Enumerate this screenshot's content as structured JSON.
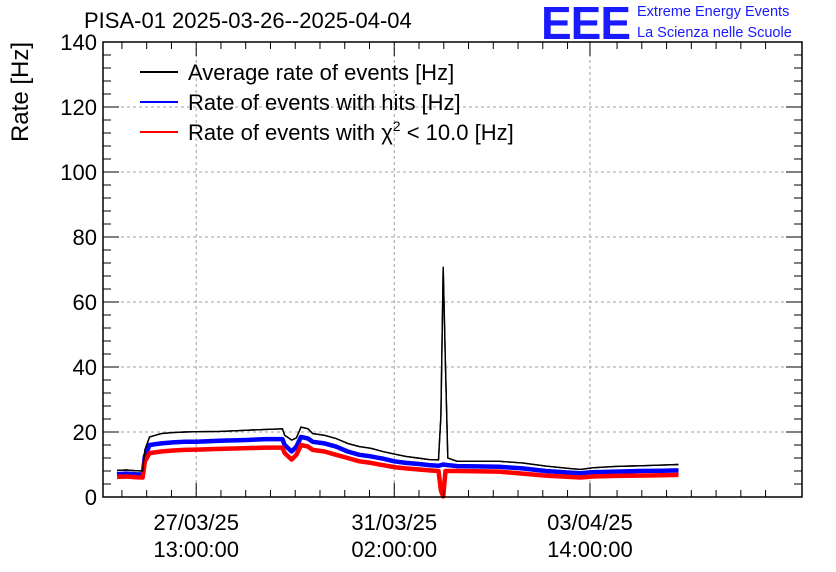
{
  "header": {
    "title": "PISA-01 2025-03-26--2025-04-04",
    "logo_text": "EEE",
    "logo_line1": "Extreme Energy Events",
    "logo_line2": "La Scienza nelle Scuole"
  },
  "chart_data": {
    "type": "line",
    "title": "PISA-01 2025-03-26--2025-04-04",
    "ylabel": "Rate [Hz]",
    "xlabel": "",
    "ylim": [
      0,
      140
    ],
    "xlim": [
      -40,
      260
    ],
    "x_unit": "hours relative to 27/03/25 13:00:00",
    "grid": true,
    "legend_position": "top-left",
    "yticks": [
      0,
      20,
      40,
      60,
      80,
      100,
      120,
      140
    ],
    "xticks": [
      {
        "x": 0,
        "line1": "27/03/25",
        "line2": "13:00:00"
      },
      {
        "x": 85,
        "line1": "31/03/25",
        "line2": "02:00:00"
      },
      {
        "x": 169,
        "line1": "03/04/25",
        "line2": "14:00:00"
      }
    ],
    "series": [
      {
        "name": "Average rate of events [Hz]",
        "color": "#000000",
        "points": [
          [
            -34,
            8.2
          ],
          [
            -30,
            8.3
          ],
          [
            -26,
            8.1
          ],
          [
            -23,
            8.0
          ],
          [
            -22,
            14.5
          ],
          [
            -20,
            18.5
          ],
          [
            -15,
            19.5
          ],
          [
            -10,
            19.8
          ],
          [
            -5,
            20.0
          ],
          [
            0,
            20.1
          ],
          [
            10,
            20.2
          ],
          [
            20,
            20.5
          ],
          [
            30,
            20.8
          ],
          [
            37,
            21.0
          ],
          [
            38,
            19.0
          ],
          [
            41,
            17.5
          ],
          [
            43,
            18.2
          ],
          [
            45,
            21.5
          ],
          [
            48,
            21.0
          ],
          [
            50,
            19.5
          ],
          [
            55,
            19.0
          ],
          [
            60,
            18.0
          ],
          [
            65,
            16.5
          ],
          [
            70,
            15.5
          ],
          [
            75,
            15.0
          ],
          [
            80,
            14.0
          ],
          [
            85,
            13.2
          ],
          [
            90,
            12.5
          ],
          [
            95,
            12.0
          ],
          [
            100,
            11.5
          ],
          [
            104,
            11.4
          ],
          [
            105,
            25.0
          ],
          [
            106,
            70.7
          ],
          [
            107,
            40.0
          ],
          [
            108,
            12.0
          ],
          [
            112,
            11.0
          ],
          [
            120,
            11.0
          ],
          [
            130,
            11.0
          ],
          [
            140,
            10.5
          ],
          [
            150,
            9.5
          ],
          [
            160,
            8.8
          ],
          [
            165,
            8.5
          ],
          [
            170,
            9.0
          ],
          [
            180,
            9.4
          ],
          [
            190,
            9.6
          ],
          [
            200,
            9.8
          ],
          [
            207,
            10.0
          ]
        ]
      },
      {
        "name": "Rate of events with hits [Hz]",
        "color": "#0000ff",
        "points": [
          [
            -34,
            7.0
          ],
          [
            -30,
            7.2
          ],
          [
            -26,
            7.0
          ],
          [
            -23,
            6.9
          ],
          [
            -22,
            12.5
          ],
          [
            -20,
            16.0
          ],
          [
            -15,
            16.5
          ],
          [
            -10,
            16.8
          ],
          [
            -5,
            17.0
          ],
          [
            0,
            17.0
          ],
          [
            10,
            17.3
          ],
          [
            20,
            17.5
          ],
          [
            30,
            17.8
          ],
          [
            37,
            17.8
          ],
          [
            38,
            16.0
          ],
          [
            41,
            14.0
          ],
          [
            43,
            15.5
          ],
          [
            45,
            18.5
          ],
          [
            48,
            18.0
          ],
          [
            50,
            17.0
          ],
          [
            55,
            16.5
          ],
          [
            60,
            15.5
          ],
          [
            65,
            14.0
          ],
          [
            70,
            13.0
          ],
          [
            75,
            12.5
          ],
          [
            80,
            11.8
          ],
          [
            85,
            11.0
          ],
          [
            90,
            10.5
          ],
          [
            95,
            10.2
          ],
          [
            100,
            9.8
          ],
          [
            104,
            9.6
          ],
          [
            106,
            10.0
          ],
          [
            108,
            9.8
          ],
          [
            112,
            9.5
          ],
          [
            120,
            9.4
          ],
          [
            130,
            9.3
          ],
          [
            140,
            8.8
          ],
          [
            150,
            8.0
          ],
          [
            160,
            7.5
          ],
          [
            165,
            7.3
          ],
          [
            170,
            7.6
          ],
          [
            180,
            7.8
          ],
          [
            190,
            8.0
          ],
          [
            200,
            8.1
          ],
          [
            207,
            8.2
          ]
        ]
      },
      {
        "name": "Rate of events with χ² < 10.0 [Hz]",
        "label_prefix": "Rate of events with ",
        "label_symbol": "χ",
        "label_superscript": "2",
        "label_suffix": " < 10.0 [Hz]",
        "color": "#ff0000",
        "points": [
          [
            -34,
            6.2
          ],
          [
            -30,
            6.3
          ],
          [
            -26,
            6.1
          ],
          [
            -23,
            6.0
          ],
          [
            -22,
            11.0
          ],
          [
            -20,
            13.5
          ],
          [
            -15,
            14.0
          ],
          [
            -10,
            14.3
          ],
          [
            -5,
            14.5
          ],
          [
            0,
            14.6
          ],
          [
            10,
            14.8
          ],
          [
            20,
            15.0
          ],
          [
            30,
            15.2
          ],
          [
            37,
            15.2
          ],
          [
            38,
            13.5
          ],
          [
            41,
            11.5
          ],
          [
            43,
            13.0
          ],
          [
            45,
            16.0
          ],
          [
            48,
            15.5
          ],
          [
            50,
            14.5
          ],
          [
            55,
            14.0
          ],
          [
            60,
            13.0
          ],
          [
            65,
            12.0
          ],
          [
            70,
            11.0
          ],
          [
            75,
            10.5
          ],
          [
            80,
            9.8
          ],
          [
            85,
            9.2
          ],
          [
            90,
            8.8
          ],
          [
            95,
            8.5
          ],
          [
            100,
            8.2
          ],
          [
            104,
            8.0
          ],
          [
            105,
            2.0
          ],
          [
            106,
            0.2
          ],
          [
            107,
            8.0
          ],
          [
            112,
            8.0
          ],
          [
            120,
            7.9
          ],
          [
            130,
            7.8
          ],
          [
            140,
            7.2
          ],
          [
            150,
            6.6
          ],
          [
            160,
            6.2
          ],
          [
            165,
            6.0
          ],
          [
            170,
            6.3
          ],
          [
            180,
            6.5
          ],
          [
            190,
            6.6
          ],
          [
            200,
            6.7
          ],
          [
            207,
            6.8
          ]
        ]
      }
    ]
  }
}
